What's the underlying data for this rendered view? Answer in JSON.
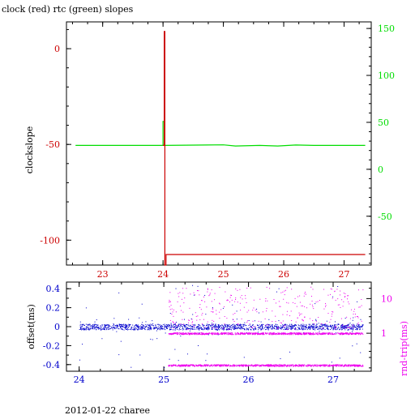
{
  "chart_data": [
    {
      "type": "line",
      "title": "clock (red) rtc (green) slopes",
      "ylabel": "clockslope",
      "xlim": [
        22.4,
        27.45
      ],
      "ylim_left": [
        -113,
        14
      ],
      "ylim_right": [
        -102,
        157
      ],
      "x_ticks": [
        23,
        24,
        25,
        26,
        27
      ],
      "x_tick_labels": [
        "23",
        "24",
        "25",
        "26",
        "27"
      ],
      "y_left_ticks": [
        0,
        -50,
        -100
      ],
      "y_left_tick_labels": [
        "0",
        "-50",
        "-100"
      ],
      "y_right_ticks": [
        150,
        100,
        50,
        0,
        -50
      ],
      "y_right_tick_labels": [
        "150",
        "100",
        "50",
        "0",
        "-50"
      ],
      "colors": {
        "clock": "#cc0000",
        "rtc": "#00dd00",
        "axis": "#000000"
      },
      "series": [
        {
          "name": "clock",
          "axis": "left",
          "x": [
            24.0,
            24.02,
            24.02,
            24.03,
            24.03,
            24.05,
            24.05,
            27.35
          ],
          "y": [
            -50.5,
            -50.5,
            9,
            9,
            -113,
            -113,
            -107.5,
            -107.5
          ]
        },
        {
          "name": "rtc",
          "axis": "left",
          "x": [
            22.55,
            24.0,
            24.0,
            24.02,
            24.02,
            25.0,
            25.2,
            25.6,
            25.9,
            26.2,
            26.5,
            27.35
          ],
          "y": [
            -50.5,
            -50.5,
            -38,
            -38,
            -50.5,
            -50.2,
            -50.8,
            -50.5,
            -50.8,
            -50.3,
            -50.5,
            -50.5
          ]
        }
      ]
    },
    {
      "type": "scatter",
      "ylabel": "offset(ms)",
      "ylabel_right": "rnd-trip(ms)",
      "xlim": [
        23.85,
        27.45
      ],
      "ylim_left": [
        -0.47,
        0.47
      ],
      "x_ticks": [
        24,
        25,
        26,
        27
      ],
      "x_tick_labels": [
        "24",
        "25",
        "26",
        "27"
      ],
      "y_left_ticks": [
        0.4,
        0.2,
        0,
        -0.2,
        -0.4
      ],
      "y_left_tick_labels": [
        "0.4",
        "0.2",
        "0",
        "-0.2",
        "-0.4"
      ],
      "y_right_ticks": [
        10,
        1
      ],
      "y_right_tick_labels": [
        "10",
        "1"
      ],
      "colors": {
        "offset": "#0000cc",
        "rnd_trip": "#ee00ee",
        "axis_left": "#0000cc",
        "axis_right": "#ee00ee"
      },
      "series": [
        {
          "name": "offset",
          "x_range": [
            24.0,
            27.35
          ],
          "y_center": 0.0,
          "y_spread": 0.03
        },
        {
          "name": "rnd-trip",
          "x_range": [
            25.05,
            27.35
          ],
          "bands_ms": [
            1.0,
            0.12
          ],
          "outliers": true
        }
      ]
    }
  ],
  "footer": {
    "text": "2012-01-22 charee"
  }
}
